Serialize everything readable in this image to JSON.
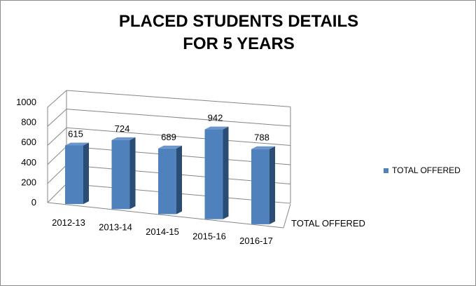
{
  "chart_data": {
    "type": "bar",
    "title": [
      "PLACED STUDENTS DETAILS",
      "FOR 5 YEARS"
    ],
    "categories": [
      "2012-13",
      "2013-14",
      "2014-15",
      "2015-16",
      "2016-17"
    ],
    "series": [
      {
        "name": "TOTAL OFFERED",
        "values": [
          615,
          724,
          689,
          942,
          788
        ],
        "color": "#4f81bd"
      }
    ],
    "depth_axis_label": "TOTAL OFFERED",
    "ylim": [
      0,
      1000
    ],
    "yticks": [
      "0",
      "200",
      "400",
      "600",
      "800",
      "1000"
    ],
    "grid": true,
    "legend": {
      "position": "right",
      "label": "TOTAL OFFERED"
    }
  }
}
